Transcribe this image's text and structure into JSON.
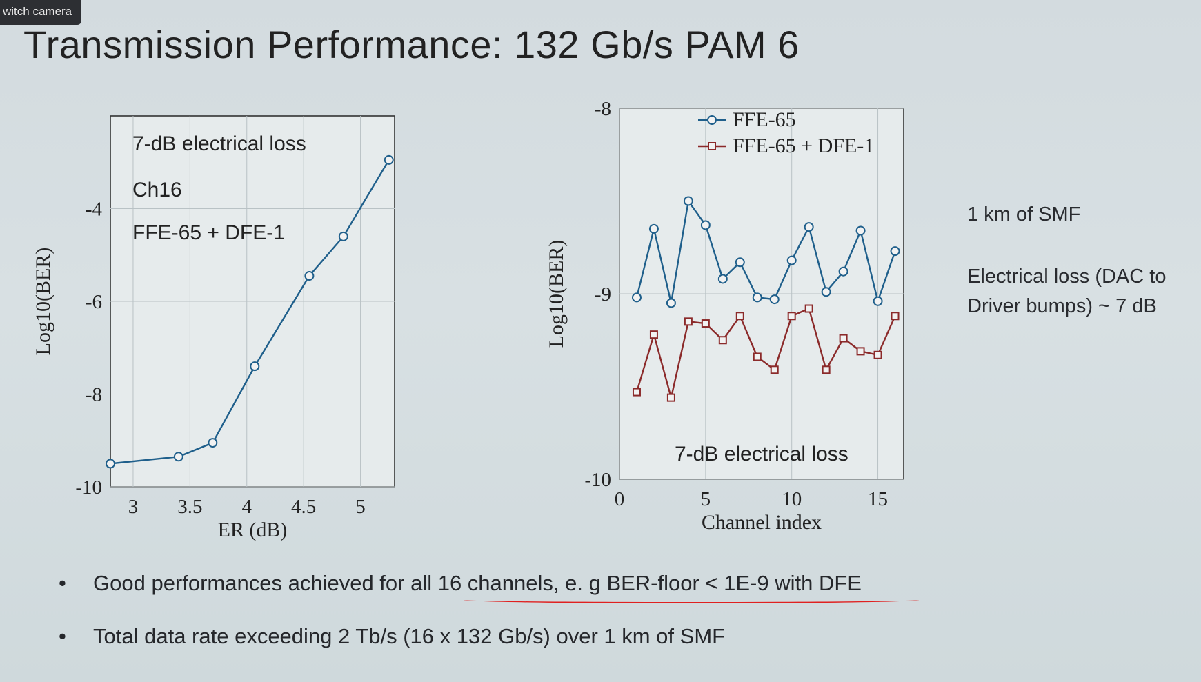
{
  "overlay": {
    "switch_camera": "witch camera"
  },
  "title": "Transmission Performance: 132 Gb/s PAM 6",
  "side_notes": {
    "smf": "1 km of SMF",
    "loss": "Electrical loss (DAC to Driver bumps) ~ 7 dB"
  },
  "bullets": [
    "Good performances achieved for all 16 channels, e. g BER-floor < 1E-9 with DFE",
    "Total data rate exceeding 2 Tb/s (16 x 132 Gb/s) over 1 km of SMF"
  ],
  "colors": {
    "line_blue": "#1f5f8b",
    "line_red": "#8b2a2a",
    "underline": "#e02020"
  },
  "chart_data": [
    {
      "type": "line",
      "xlabel": "ER (dB)",
      "ylabel": "Log10(BER)",
      "xlim": [
        2.8,
        5.3
      ],
      "ylim": [
        -10,
        -2
      ],
      "xticks": [
        3,
        3.5,
        4,
        4.5,
        5
      ],
      "yticks": [
        -4,
        -6,
        -8,
        -10
      ],
      "grid": true,
      "annotations": [
        "7-dB electrical loss",
        "Ch16",
        "FFE-65 + DFE-1"
      ],
      "series": [
        {
          "x": [
            2.8,
            3.4,
            3.7,
            4.07,
            4.55,
            4.85,
            5.25
          ],
          "y": [
            -9.5,
            -9.35,
            -9.05,
            -7.4,
            -5.45,
            -4.6,
            -2.95
          ]
        }
      ]
    },
    {
      "type": "line",
      "xlabel": "Channel index",
      "ylabel": "Log10(BER)",
      "xlim": [
        0,
        16.5
      ],
      "ylim": [
        -10,
        -8
      ],
      "xticks": [
        0,
        5,
        10,
        15
      ],
      "yticks": [
        -8,
        -9,
        -10
      ],
      "grid": true,
      "legend": "top",
      "annotations": [
        "7-dB electrical loss"
      ],
      "x": [
        1,
        2,
        3,
        4,
        5,
        6,
        7,
        8,
        9,
        10,
        11,
        12,
        13,
        14,
        15,
        16
      ],
      "series": [
        {
          "name": "FFE-65",
          "marker": "circle",
          "values": [
            -9.02,
            -8.65,
            -9.05,
            -8.5,
            -8.63,
            -8.92,
            -8.83,
            -9.02,
            -9.03,
            -8.82,
            -8.64,
            -8.99,
            -8.88,
            -8.66,
            -9.04,
            -8.77
          ]
        },
        {
          "name": "FFE-65 + DFE-1",
          "marker": "square",
          "values": [
            -9.53,
            -9.22,
            -9.56,
            -9.15,
            -9.16,
            -9.25,
            -9.12,
            -9.34,
            -9.41,
            -9.12,
            -9.08,
            -9.41,
            -9.24,
            -9.31,
            -9.33,
            -9.12
          ]
        }
      ]
    }
  ]
}
